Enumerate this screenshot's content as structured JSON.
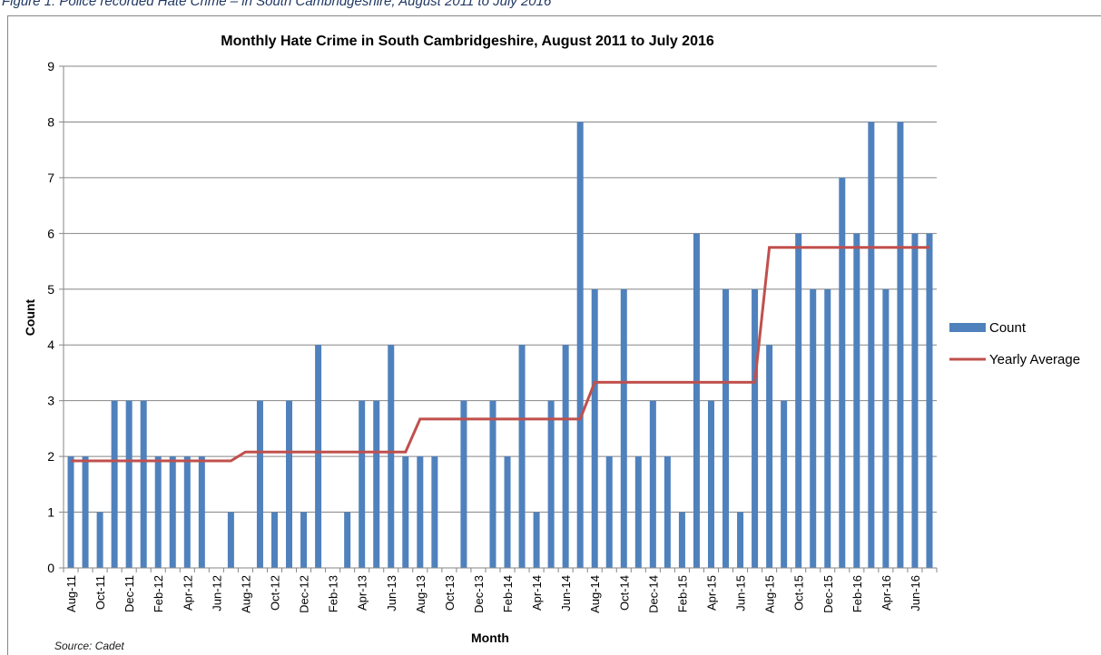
{
  "caption": "Figure 1: Police recorded Hate Crime – in South Cambridgeshire, August 2011 to July 2016",
  "source": "Source: Cadet",
  "colors": {
    "bar": "#4f81bd",
    "average": "#c0504d",
    "grid": "#868686",
    "axis": "#868686",
    "text": "#000000"
  },
  "chart_data": {
    "type": "bar",
    "title": "Monthly Hate Crime in South Cambridgeshire, August 2011 to July 2016",
    "xlabel": "Month",
    "ylabel": "Count",
    "ylim": [
      0,
      9
    ],
    "yticks": [
      0,
      1,
      2,
      3,
      4,
      5,
      6,
      7,
      8,
      9
    ],
    "grid": true,
    "legend_position": "right",
    "categories": [
      "Aug-11",
      "Sep-11",
      "Oct-11",
      "Nov-11",
      "Dec-11",
      "Jan-12",
      "Feb-12",
      "Mar-12",
      "Apr-12",
      "May-12",
      "Jun-12",
      "Jul-12",
      "Aug-12",
      "Sep-12",
      "Oct-12",
      "Nov-12",
      "Dec-12",
      "Jan-13",
      "Feb-13",
      "Mar-13",
      "Apr-13",
      "May-13",
      "Jun-13",
      "Jul-13",
      "Aug-13",
      "Sep-13",
      "Oct-13",
      "Nov-13",
      "Dec-13",
      "Jan-14",
      "Feb-14",
      "Mar-14",
      "Apr-14",
      "May-14",
      "Jun-14",
      "Jul-14",
      "Aug-14",
      "Sep-14",
      "Oct-14",
      "Nov-14",
      "Dec-14",
      "Jan-15",
      "Feb-15",
      "Mar-15",
      "Apr-15",
      "May-15",
      "Jun-15",
      "Jul-15",
      "Aug-15",
      "Sep-15",
      "Oct-15",
      "Nov-15",
      "Dec-15",
      "Jan-16",
      "Feb-16",
      "Mar-16",
      "Apr-16",
      "May-16",
      "Jun-16",
      "Jul-16"
    ],
    "tick_labels_shown": [
      "Aug-11",
      "Oct-11",
      "Dec-11",
      "Feb-12",
      "Apr-12",
      "Jun-12",
      "Aug-12",
      "Oct-12",
      "Dec-12",
      "Feb-13",
      "Apr-13",
      "Jun-13",
      "Aug-13",
      "Oct-13",
      "Dec-13",
      "Feb-14",
      "Apr-14",
      "Jun-14",
      "Aug-14",
      "Oct-14",
      "Dec-14",
      "Feb-15",
      "Apr-15",
      "Jun-15",
      "Aug-15",
      "Oct-15",
      "Dec-15",
      "Feb-16",
      "Apr-16",
      "Jun-16"
    ],
    "series": [
      {
        "name": "Count",
        "type": "bar",
        "values": [
          2,
          2,
          1,
          3,
          3,
          3,
          2,
          2,
          2,
          2,
          0,
          1,
          0,
          3,
          1,
          3,
          1,
          4,
          0,
          1,
          3,
          3,
          4,
          2,
          2,
          2,
          0,
          3,
          0,
          3,
          2,
          4,
          1,
          3,
          4,
          8,
          5,
          2,
          5,
          2,
          3,
          2,
          1,
          6,
          3,
          5,
          1,
          5,
          4,
          3,
          6,
          5,
          5,
          7,
          6,
          8,
          5,
          8,
          6,
          6
        ]
      },
      {
        "name": "Yearly Average",
        "type": "line",
        "values": [
          1.92,
          1.92,
          1.92,
          1.92,
          1.92,
          1.92,
          1.92,
          1.92,
          1.92,
          1.92,
          1.92,
          1.92,
          2.08,
          2.08,
          2.08,
          2.08,
          2.08,
          2.08,
          2.08,
          2.08,
          2.08,
          2.08,
          2.08,
          2.08,
          2.67,
          2.67,
          2.67,
          2.67,
          2.67,
          2.67,
          2.67,
          2.67,
          2.67,
          2.67,
          2.67,
          2.67,
          3.33,
          3.33,
          3.33,
          3.33,
          3.33,
          3.33,
          3.33,
          3.33,
          3.33,
          3.33,
          3.33,
          3.33,
          5.75,
          5.75,
          5.75,
          5.75,
          5.75,
          5.75,
          5.75,
          5.75,
          5.75,
          5.75,
          5.75,
          5.75
        ]
      }
    ]
  }
}
